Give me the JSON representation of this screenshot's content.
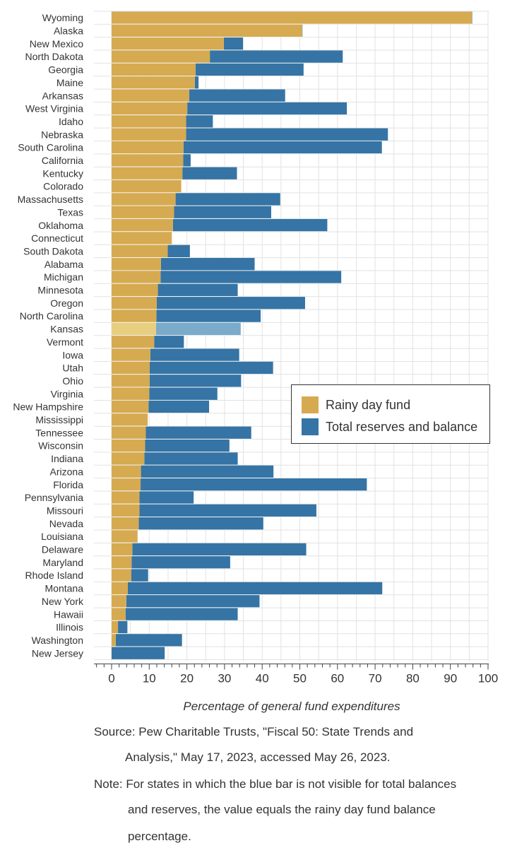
{
  "colors": {
    "rainy": "#d6aa50",
    "total": "#3574a5",
    "rainy_highlight": "#e8cf80",
    "total_highlight": "#7aabcb",
    "grid": "#e2e2e2",
    "axis": "#444444"
  },
  "legend": {
    "rainy_label": "Rainy day fund",
    "total_label": "Total reserves and balance"
  },
  "source_text": {
    "line1": "Source: Pew Charitable Trusts, \"Fiscal 50: State Trends and",
    "line2": "Analysis,\" May 17, 2023, accessed May 26, 2023."
  },
  "note_text": {
    "prefix": "Note: For states in which the blue bar is not visible for total balances",
    "line2": "and reserves, the value equals the rainy day fund balance",
    "line3": "percentage."
  },
  "chart_data": {
    "type": "bar",
    "orientation": "horizontal",
    "xlabel": "Percentage of general fund expenditures",
    "ylabel": "",
    "xlim": [
      0,
      100
    ],
    "xticks": [
      0,
      10,
      20,
      30,
      40,
      50,
      60,
      70,
      80,
      90,
      100
    ],
    "grid": true,
    "legend_position": "right",
    "highlighted_category": "Kansas",
    "categories": [
      "Wyoming",
      "Alaska",
      "New Mexico",
      "North Dakota",
      "Georgia",
      "Maine",
      "Arkansas",
      "West Virginia",
      "Idaho",
      "Nebraska",
      "South Carolina",
      "California",
      "Kentucky",
      "Colorado",
      "Massachusetts",
      "Texas",
      "Oklahoma",
      "Connecticut",
      "South Dakota",
      "Alabama",
      "Michigan",
      "Minnesota",
      "Oregon",
      "North Carolina",
      "Kansas",
      "Vermont",
      "Iowa",
      "Utah",
      "Ohio",
      "Virginia",
      "New Hampshire",
      "Mississippi",
      "Tennessee",
      "Wisconsin",
      "Indiana",
      "Arizona",
      "Florida",
      "Pennsylvania",
      "Missouri",
      "Nevada",
      "Louisiana",
      "Delaware",
      "Maryland",
      "Rhode Island",
      "Montana",
      "New York",
      "Hawaii",
      "Illinois",
      "Washington",
      "New Jersey"
    ],
    "series": [
      {
        "name": "Rainy day fund",
        "values": [
          95.7,
          50.6,
          29.8,
          26.1,
          22.3,
          22.1,
          20.6,
          20.1,
          19.8,
          19.8,
          19.1,
          19.0,
          18.8,
          18.5,
          17.0,
          16.6,
          16.3,
          16.0,
          14.9,
          13.1,
          13.0,
          12.3,
          12.0,
          11.9,
          11.8,
          11.3,
          10.3,
          10.1,
          10.1,
          10.0,
          9.8,
          9.6,
          9.1,
          8.9,
          8.7,
          7.8,
          7.7,
          7.4,
          7.4,
          7.2,
          6.9,
          5.5,
          5.3,
          5.2,
          4.3,
          3.9,
          3.7,
          1.7,
          1.1,
          0.0
        ]
      },
      {
        "name": "Total reserves and balance",
        "values": [
          95.8,
          50.7,
          34.9,
          61.4,
          51.0,
          23.1,
          46.1,
          62.5,
          26.9,
          73.4,
          71.8,
          21.0,
          33.3,
          18.5,
          44.8,
          42.4,
          57.3,
          16.0,
          20.8,
          38.0,
          61.0,
          33.5,
          51.4,
          39.6,
          34.3,
          19.2,
          33.9,
          42.9,
          34.4,
          28.1,
          25.9,
          9.6,
          37.1,
          31.3,
          33.5,
          43.0,
          67.8,
          21.8,
          54.4,
          40.3,
          6.9,
          51.7,
          31.5,
          9.7,
          71.9,
          39.3,
          33.5,
          4.2,
          18.7,
          14.1
        ]
      }
    ]
  }
}
